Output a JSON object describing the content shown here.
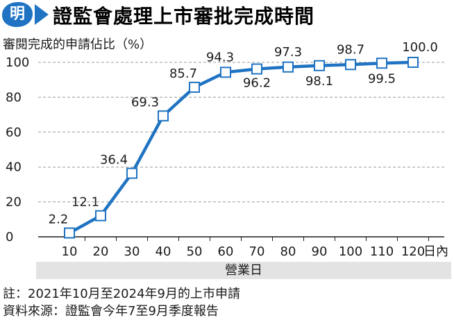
{
  "header": {
    "logo_text": "明",
    "title": "證監會處理上市審批完成時間"
  },
  "colors": {
    "accent": "#1f73c2",
    "band": "#e3e3e3"
  },
  "chart_data": {
    "type": "line",
    "ylabel": "審閱完成的申請佔比（%）",
    "xlabel": "營業日",
    "x_unit_label": "日內",
    "x": [
      10,
      20,
      30,
      40,
      50,
      60,
      70,
      80,
      90,
      100,
      110,
      120
    ],
    "y": [
      2.2,
      12.1,
      36.4,
      69.3,
      85.7,
      94.3,
      96.2,
      97.3,
      98.1,
      98.7,
      99.5,
      100.0
    ],
    "data_labels": [
      "2.2",
      "12.1",
      "36.4",
      "69.3",
      "85.7",
      "94.3",
      "96.2",
      "97.3",
      "98.1",
      "98.7",
      "99.5",
      "100.0"
    ],
    "yticks": [
      "0",
      "20",
      "40",
      "60",
      "80",
      "100"
    ],
    "xticks": [
      "10",
      "20",
      "30",
      "40",
      "50",
      "60",
      "70",
      "80",
      "90",
      "100",
      "110",
      "120"
    ],
    "ylim": [
      0,
      100
    ],
    "xlim": [
      0,
      130
    ],
    "grid": "horizontal dashed",
    "legend": "none"
  },
  "notes": {
    "note1": "註：2021年10月至2024年9月的上市申請",
    "note2": "資料來源：證監會今年7至9月季度報告"
  }
}
